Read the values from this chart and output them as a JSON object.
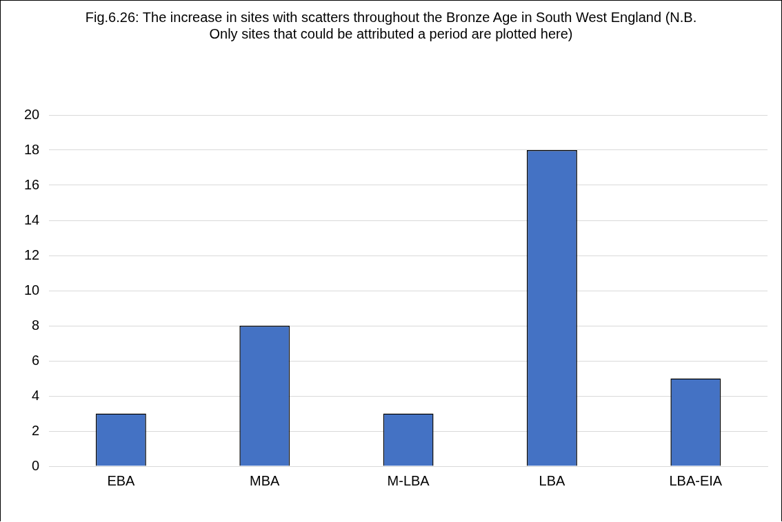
{
  "chart_data": {
    "type": "bar",
    "title": "Fig.6.26: The increase in sites with scatters throughout the Bronze Age in South West England (N.B. Only sites that could be attributed a period are plotted here)",
    "categories": [
      "EBA",
      "MBA",
      "M-LBA",
      "LBA",
      "LBA-EIA"
    ],
    "values": [
      3,
      8,
      3,
      18,
      5
    ],
    "color": "#4472c4",
    "ylim": [
      0,
      20
    ],
    "yticks": [
      0,
      2,
      4,
      6,
      8,
      10,
      12,
      14,
      16,
      18,
      20
    ],
    "grid": "y",
    "legend": false
  }
}
